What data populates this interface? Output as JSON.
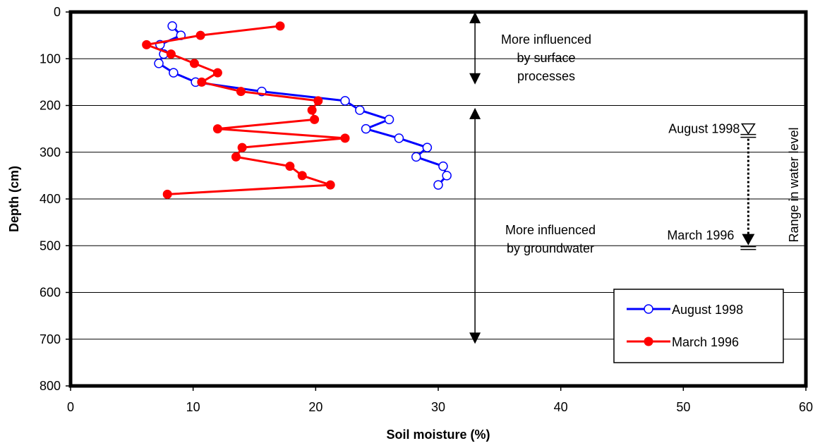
{
  "chart_data": {
    "type": "line",
    "title": "",
    "xlabel": "Soil moisture (%)",
    "ylabel": "Depth (cm)",
    "xlim": [
      0,
      60
    ],
    "ylim": [
      0,
      800
    ],
    "y_inverted": true,
    "x_ticks": [
      0,
      10,
      20,
      30,
      40,
      50,
      60
    ],
    "y_ticks": [
      0,
      100,
      200,
      300,
      400,
      500,
      600,
      700,
      800
    ],
    "grid": "horizontal",
    "legend_position": "bottom-right",
    "series": [
      {
        "name": "August 1998",
        "color": "#0000ff",
        "marker": "open-circle",
        "points": [
          [
            8.3,
            30
          ],
          [
            9.0,
            50
          ],
          [
            7.3,
            70
          ],
          [
            7.6,
            90
          ],
          [
            7.2,
            110
          ],
          [
            8.4,
            130
          ],
          [
            10.2,
            150
          ],
          [
            15.6,
            170
          ],
          [
            22.4,
            190
          ],
          [
            23.6,
            210
          ],
          [
            26.0,
            230
          ],
          [
            24.1,
            250
          ],
          [
            26.8,
            270
          ],
          [
            29.1,
            290
          ],
          [
            28.2,
            310
          ],
          [
            30.4,
            330
          ],
          [
            30.7,
            350
          ],
          [
            30.0,
            370
          ]
        ]
      },
      {
        "name": "March 1996",
        "color": "#ff0000",
        "marker": "filled-circle",
        "points": [
          [
            17.1,
            30
          ],
          [
            10.6,
            50
          ],
          [
            6.2,
            70
          ],
          [
            8.2,
            90
          ],
          [
            10.1,
            110
          ],
          [
            12.0,
            130
          ],
          [
            10.7,
            150
          ],
          [
            13.9,
            170
          ],
          [
            20.2,
            190
          ],
          [
            19.7,
            210
          ],
          [
            19.9,
            230
          ],
          [
            12.0,
            250
          ],
          [
            22.4,
            270
          ],
          [
            14.0,
            290
          ],
          [
            13.5,
            310
          ],
          [
            17.9,
            330
          ],
          [
            18.9,
            350
          ],
          [
            21.2,
            370
          ],
          [
            7.9,
            390
          ]
        ]
      }
    ],
    "annotations": {
      "surface_text": [
        "More influenced",
        "by surface",
        "processes"
      ],
      "groundwater_text": [
        "More influenced",
        "by groundwater"
      ],
      "water_level_title": "Range in water level",
      "august_label": "August 1998",
      "march_label": "March 1996",
      "surface_arrow_x": 33,
      "surface_arrow_range": [
        0,
        155
      ],
      "groundwater_arrow_x": 33,
      "groundwater_arrow_range": [
        205,
        710
      ],
      "water_level_x": 55.3,
      "water_level_august": 265,
      "water_level_march": 505
    }
  }
}
